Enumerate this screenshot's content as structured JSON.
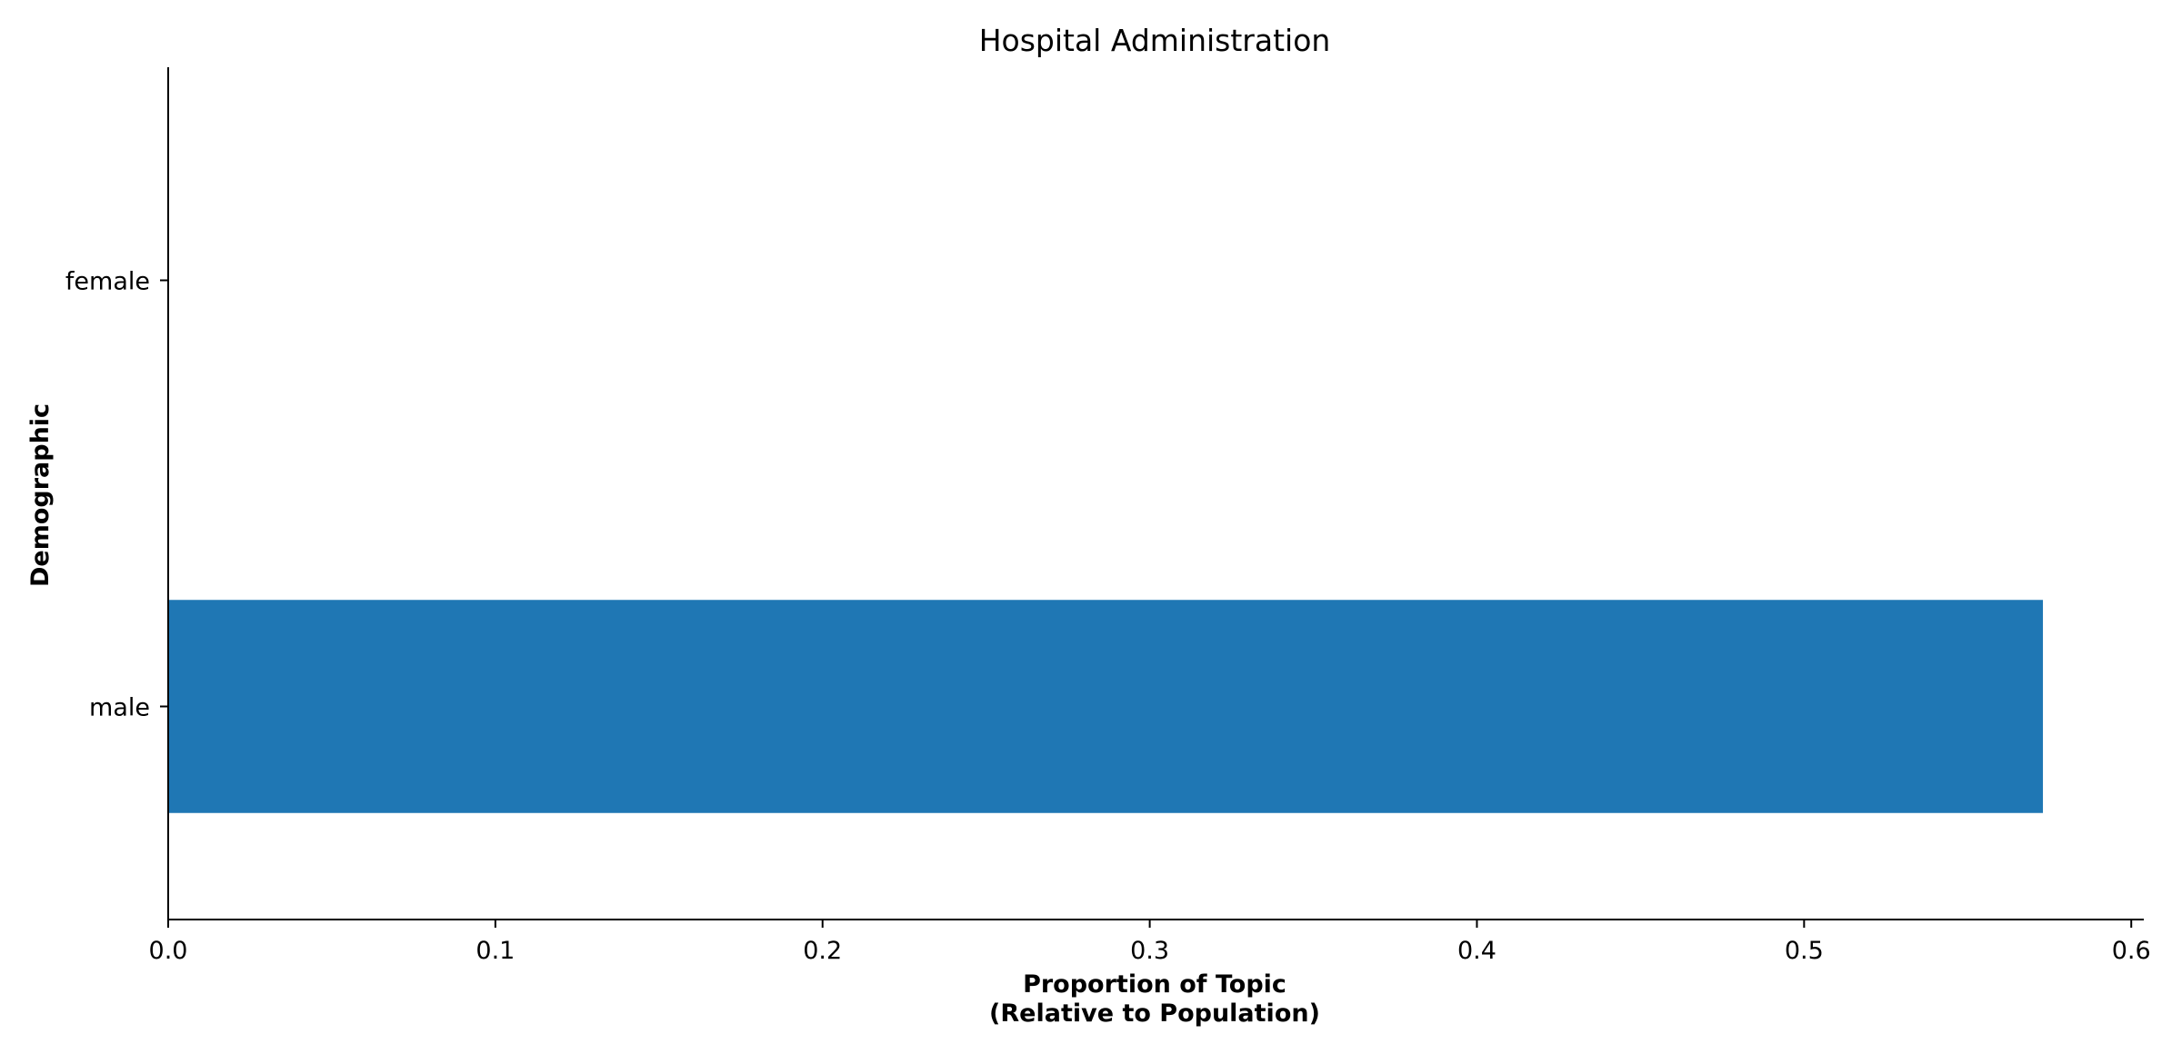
{
  "chart_data": {
    "type": "bar",
    "orientation": "horizontal",
    "title": "Hospital Administration",
    "xlabel_lines": [
      "Proportion of Topic",
      "(Relative to Population)"
    ],
    "ylabel": "Demographic",
    "categories": [
      "male",
      "female"
    ],
    "values": [
      0.573,
      0.0
    ],
    "xlim": [
      0.0,
      0.603
    ],
    "xticks": [
      0.0,
      0.1,
      0.2,
      0.3,
      0.4,
      0.5,
      0.6
    ],
    "xtick_labels": [
      "0.0",
      "0.1",
      "0.2",
      "0.3",
      "0.4",
      "0.5",
      "0.6"
    ],
    "grid": false,
    "bar_color": "#1f77b4"
  }
}
